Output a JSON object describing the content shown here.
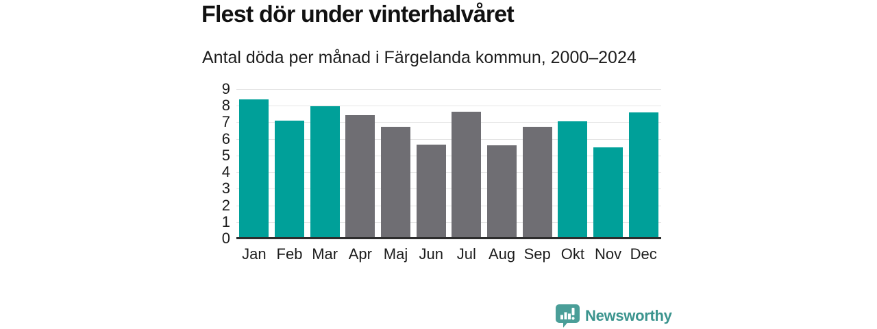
{
  "header": {
    "title": "Flest dör under vinterhalvåret",
    "subtitle": "Antal döda per månad i Färgelanda kommun, 2000–2024"
  },
  "chart_data": {
    "type": "bar",
    "title": "Flest dör under vinterhalvåret",
    "subtitle": "Antal döda per månad i Färgelanda kommun, 2000–2024",
    "categories": [
      "Jan",
      "Feb",
      "Mar",
      "Apr",
      "Maj",
      "Jun",
      "Jul",
      "Aug",
      "Sep",
      "Okt",
      "Nov",
      "Dec"
    ],
    "values": [
      8.4,
      7.1,
      7.95,
      7.45,
      6.75,
      5.65,
      7.65,
      5.6,
      6.75,
      7.05,
      5.5,
      7.6
    ],
    "bar_colors": [
      "teal",
      "teal",
      "teal",
      "gray",
      "gray",
      "gray",
      "gray",
      "gray",
      "gray",
      "teal",
      "teal",
      "teal"
    ],
    "palette": {
      "teal": "#00a099",
      "gray": "#6f6e73"
    },
    "xlabel": "",
    "ylabel": "",
    "ylim": [
      0,
      9
    ],
    "yticks": [
      0,
      1,
      2,
      3,
      4,
      5,
      6,
      7,
      8,
      9
    ],
    "grid": true,
    "legend": false,
    "gridline_color": "#e4e4e4",
    "axis_line_color": "#2d2d2d"
  },
  "footer": {
    "brand": "Newsworthy",
    "brand_text_color": "#3b948e",
    "logo_icon_color": "#4a9e98",
    "logo_icon_name": "bar-chart-speech-bubble-icon"
  }
}
